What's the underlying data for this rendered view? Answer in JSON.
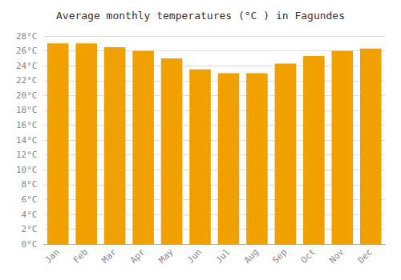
{
  "chart_data": {
    "type": "bar",
    "title": "Average monthly temperatures (°C ) in Fagundes",
    "categories": [
      "Jan",
      "Feb",
      "Mar",
      "Apr",
      "May",
      "Jun",
      "Jul",
      "Aug",
      "Sep",
      "Oct",
      "Nov",
      "Dec"
    ],
    "values": [
      27.0,
      27.0,
      26.5,
      26.0,
      25.0,
      23.5,
      23.0,
      23.0,
      24.3,
      25.3,
      26.0,
      26.3
    ],
    "color": "#F0A000",
    "ylim": [
      0,
      28
    ],
    "yticks": [
      {
        "value": 0,
        "label": "0°C"
      },
      {
        "value": 2,
        "label": "2°C"
      },
      {
        "value": 4,
        "label": "4°C"
      },
      {
        "value": 6,
        "label": "6°C"
      },
      {
        "value": 8,
        "label": "8°C"
      },
      {
        "value": 10,
        "label": "10°C"
      },
      {
        "value": 12,
        "label": "12°C"
      },
      {
        "value": 14,
        "label": "14°C"
      },
      {
        "value": 16,
        "label": "16°C"
      },
      {
        "value": 18,
        "label": "18°C"
      },
      {
        "value": 20,
        "label": "20°C"
      },
      {
        "value": 22,
        "label": "22°C"
      },
      {
        "value": 24,
        "label": "24°C"
      },
      {
        "value": 26,
        "label": "26°C"
      },
      {
        "value": 28,
        "label": "28°C"
      }
    ],
    "grid": true
  }
}
